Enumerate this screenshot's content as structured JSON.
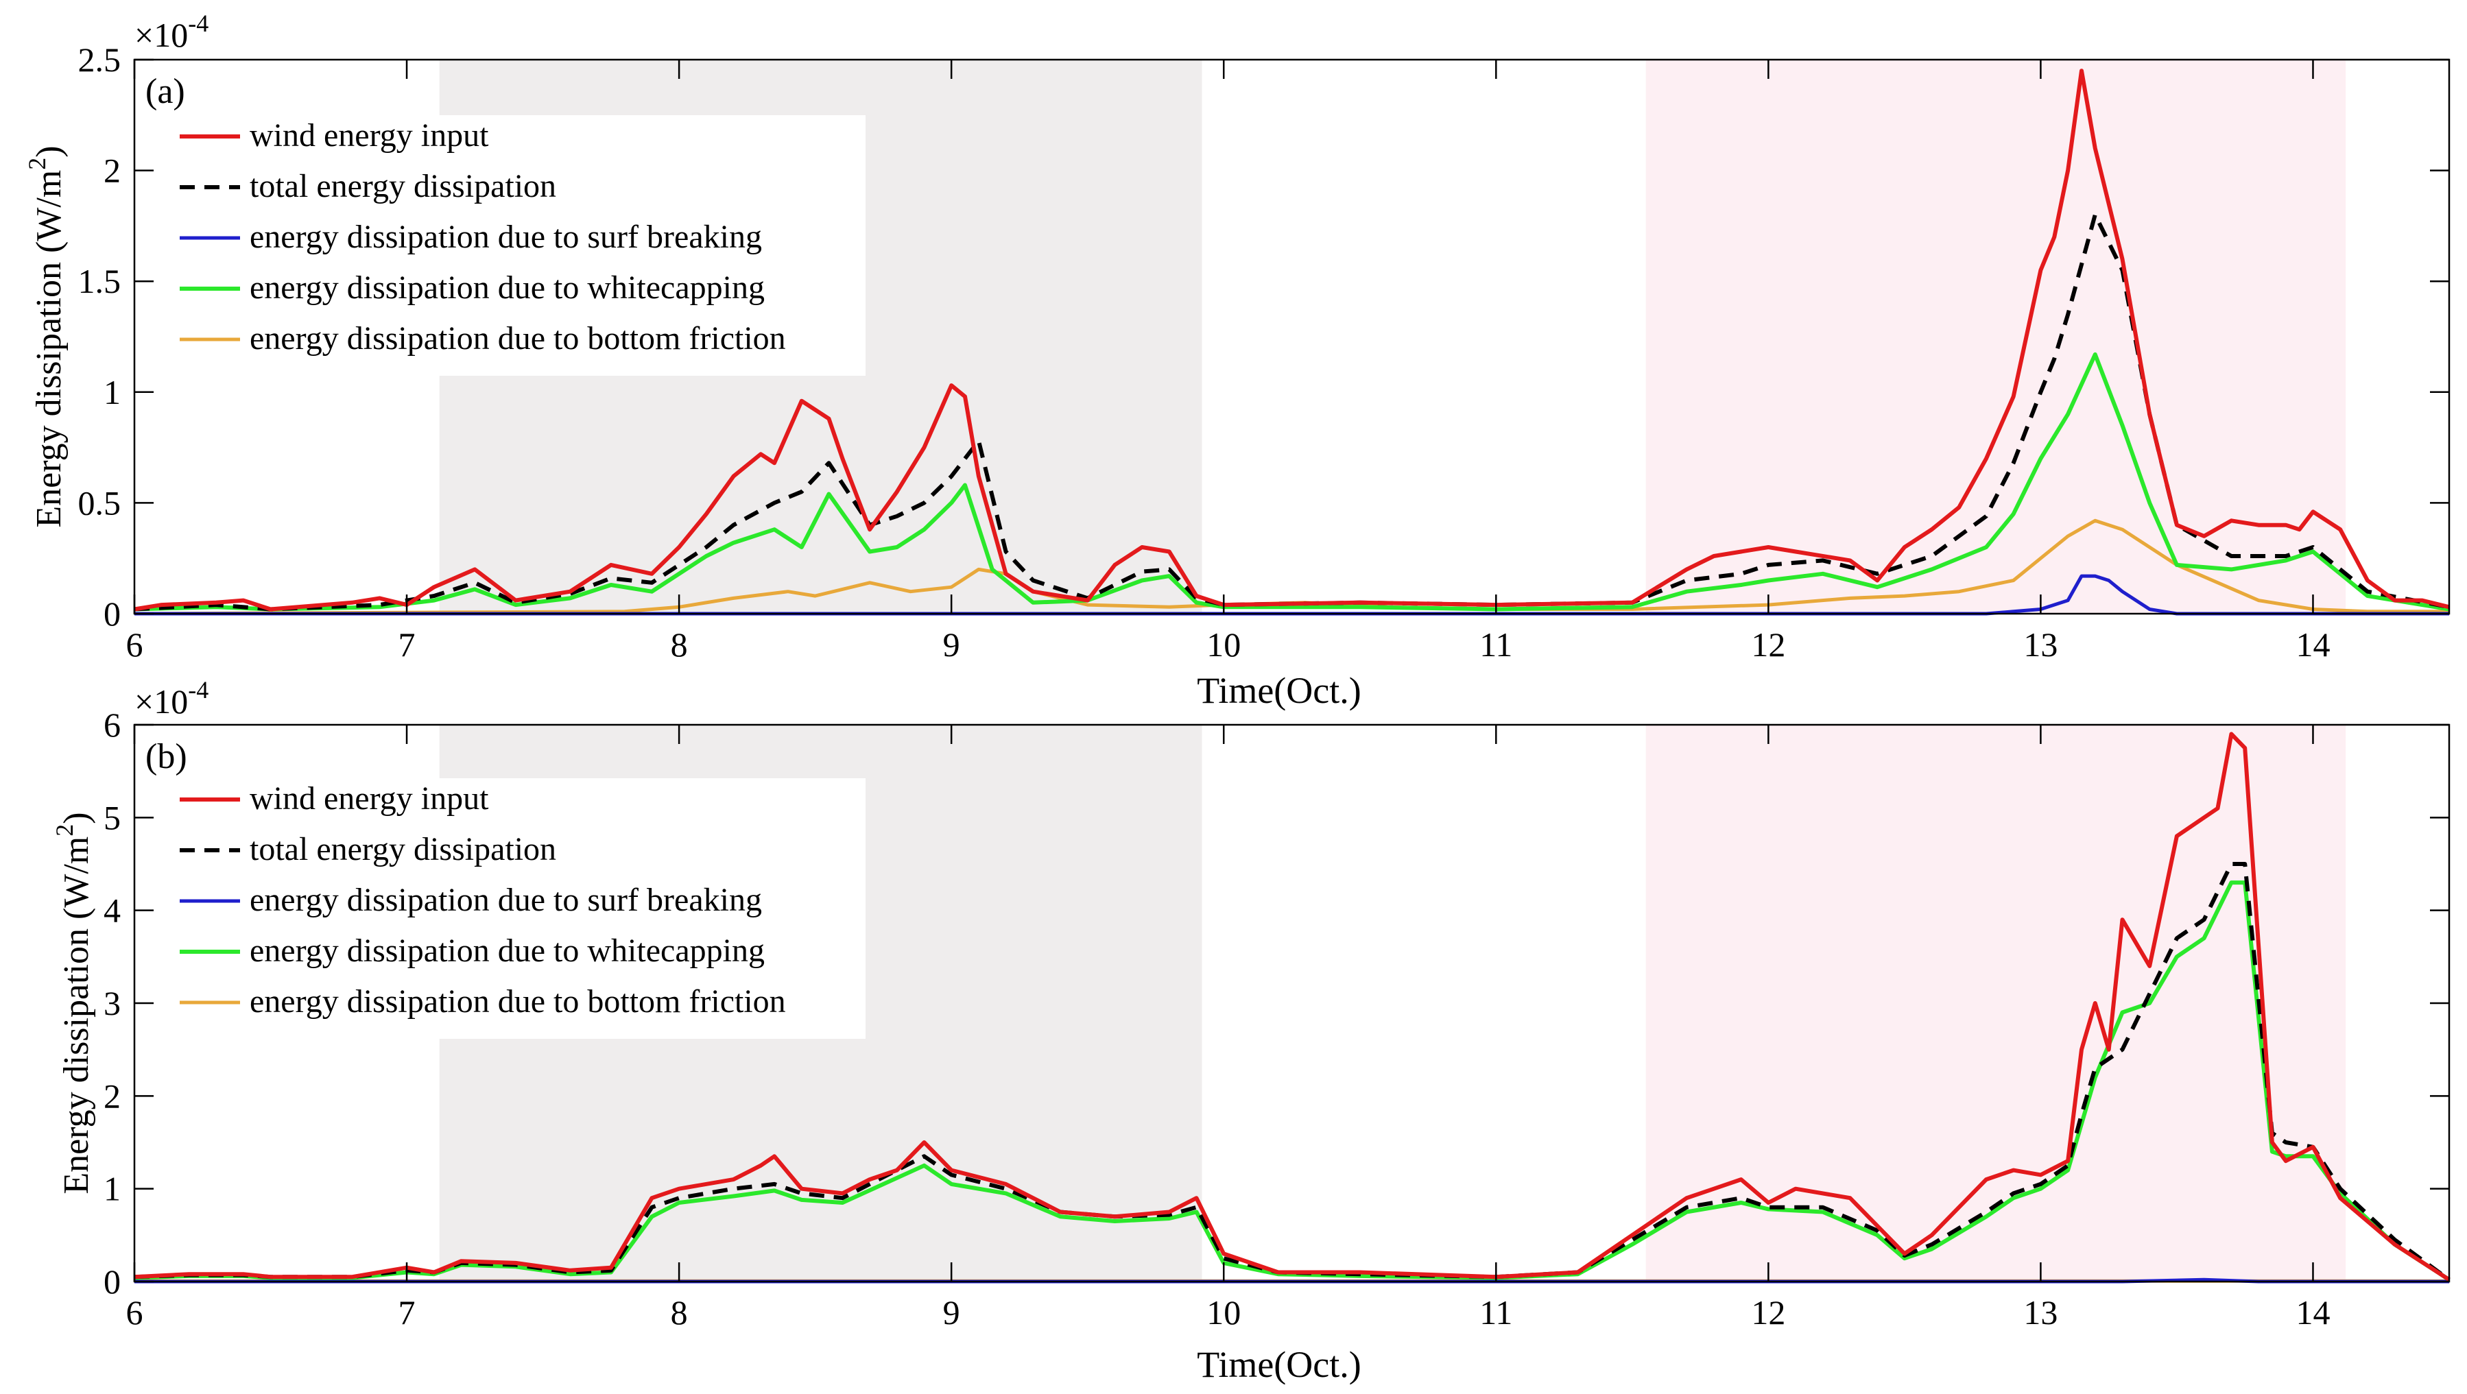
{
  "figure": {
    "x_label": "Time(Oct.)",
    "y_label": "Energy dissipation (W/m",
    "y_label_sup": "2",
    "y_label_tail": ")",
    "exp_base": "×10",
    "exp_power": "-4"
  },
  "colors": {
    "wind": "#e31a1c",
    "total": "#000000",
    "surf": "#1f1fcc",
    "whitecap": "#2be82b",
    "bottom": "#e8a83a",
    "shade_gray": "#efeded",
    "shade_pink": "#fdeff3"
  },
  "chart_data": [
    {
      "type": "line",
      "panel": "(a)",
      "xlim": [
        6,
        14.5
      ],
      "ylim": [
        0,
        2.5
      ],
      "xticks": [
        "6",
        "7",
        "8",
        "9",
        "10",
        "11",
        "12",
        "13",
        "14"
      ],
      "xtick_values": [
        6,
        7,
        8,
        9,
        10,
        11,
        12,
        13,
        14
      ],
      "yticks": [
        "0",
        "0.5",
        "1",
        "1.5",
        "2",
        "2.5"
      ],
      "ytick_values": [
        0,
        0.5,
        1,
        1.5,
        2,
        2.5
      ],
      "shaded_regions": [
        {
          "x": [
            7.12,
            9.92
          ],
          "color": "gray"
        },
        {
          "x": [
            11.55,
            14.12
          ],
          "color": "pink"
        }
      ],
      "legend": [
        "wind energy input",
        "total energy dissipation",
        "energy dissipation due to surf breaking",
        "energy dissipation due to whitecapping",
        "energy dissipation due to bottom friction"
      ],
      "series": [
        {
          "name": "wind energy input",
          "key": "wind",
          "x": [
            6,
            6.1,
            6.3,
            6.4,
            6.5,
            6.8,
            6.9,
            7.0,
            7.1,
            7.25,
            7.4,
            7.6,
            7.75,
            7.9,
            8.0,
            8.1,
            8.2,
            8.3,
            8.35,
            8.45,
            8.55,
            8.6,
            8.7,
            8.8,
            8.9,
            9.0,
            9.05,
            9.1,
            9.2,
            9.3,
            9.5,
            9.6,
            9.7,
            9.8,
            9.9,
            10.0,
            10.5,
            11.0,
            11.5,
            11.7,
            11.8,
            11.9,
            12.0,
            12.1,
            12.3,
            12.4,
            12.5,
            12.6,
            12.7,
            12.8,
            12.9,
            13.0,
            13.05,
            13.1,
            13.15,
            13.2,
            13.3,
            13.4,
            13.5,
            13.6,
            13.7,
            13.8,
            13.9,
            13.95,
            14.0,
            14.1,
            14.2,
            14.3,
            14.4,
            14.5
          ],
          "values": [
            0.02,
            0.04,
            0.05,
            0.06,
            0.02,
            0.05,
            0.07,
            0.04,
            0.12,
            0.2,
            0.06,
            0.1,
            0.22,
            0.18,
            0.3,
            0.45,
            0.62,
            0.72,
            0.68,
            0.96,
            0.88,
            0.7,
            0.38,
            0.55,
            0.75,
            1.03,
            0.98,
            0.62,
            0.18,
            0.1,
            0.06,
            0.22,
            0.3,
            0.28,
            0.08,
            0.04,
            0.05,
            0.04,
            0.05,
            0.2,
            0.26,
            0.28,
            0.3,
            0.28,
            0.24,
            0.15,
            0.3,
            0.38,
            0.48,
            0.7,
            0.98,
            1.55,
            1.7,
            2.0,
            2.45,
            2.1,
            1.6,
            0.9,
            0.4,
            0.35,
            0.42,
            0.4,
            0.4,
            0.38,
            0.46,
            0.38,
            0.15,
            0.06,
            0.06,
            0.03
          ]
        },
        {
          "name": "total energy dissipation",
          "key": "total",
          "x": [
            6,
            6.3,
            6.5,
            6.9,
            7.1,
            7.25,
            7.4,
            7.6,
            7.75,
            7.9,
            8.0,
            8.1,
            8.2,
            8.35,
            8.45,
            8.55,
            8.7,
            8.8,
            8.9,
            9.0,
            9.1,
            9.2,
            9.3,
            9.5,
            9.7,
            9.8,
            9.9,
            10.0,
            10.5,
            11.0,
            11.5,
            11.7,
            11.9,
            12.0,
            12.2,
            12.4,
            12.6,
            12.8,
            12.9,
            13.0,
            13.05,
            13.1,
            13.2,
            13.3,
            13.4,
            13.5,
            13.7,
            13.9,
            14.0,
            14.2,
            14.5
          ],
          "values": [
            0.02,
            0.04,
            0.02,
            0.04,
            0.08,
            0.14,
            0.05,
            0.09,
            0.16,
            0.14,
            0.22,
            0.3,
            0.4,
            0.5,
            0.55,
            0.68,
            0.4,
            0.44,
            0.5,
            0.62,
            0.78,
            0.28,
            0.15,
            0.07,
            0.19,
            0.2,
            0.07,
            0.04,
            0.05,
            0.04,
            0.05,
            0.15,
            0.18,
            0.22,
            0.24,
            0.18,
            0.26,
            0.44,
            0.68,
            1.0,
            1.15,
            1.35,
            1.8,
            1.55,
            0.9,
            0.4,
            0.26,
            0.26,
            0.3,
            0.1,
            0.03
          ]
        },
        {
          "name": "energy dissipation due to surf breaking",
          "key": "surf",
          "x": [
            6,
            12.8,
            13.0,
            13.1,
            13.15,
            13.2,
            13.25,
            13.3,
            13.4,
            13.5,
            14.5
          ],
          "values": [
            0.0,
            0.0,
            0.02,
            0.06,
            0.17,
            0.17,
            0.15,
            0.1,
            0.02,
            0.0,
            0.0
          ]
        },
        {
          "name": "energy dissipation due to whitecapping",
          "key": "whitecap",
          "x": [
            6,
            6.3,
            6.5,
            6.9,
            7.1,
            7.25,
            7.4,
            7.6,
            7.75,
            7.9,
            8.0,
            8.1,
            8.2,
            8.35,
            8.45,
            8.55,
            8.7,
            8.8,
            8.9,
            9.0,
            9.05,
            9.15,
            9.3,
            9.5,
            9.7,
            9.8,
            9.9,
            10.0,
            10.5,
            11.0,
            11.5,
            11.7,
            11.9,
            12.0,
            12.2,
            12.4,
            12.6,
            12.8,
            12.9,
            13.0,
            13.1,
            13.2,
            13.3,
            13.4,
            13.5,
            13.7,
            13.9,
            14.0,
            14.2,
            14.5
          ],
          "values": [
            0.02,
            0.03,
            0.02,
            0.03,
            0.06,
            0.11,
            0.04,
            0.07,
            0.13,
            0.1,
            0.18,
            0.26,
            0.32,
            0.38,
            0.3,
            0.54,
            0.28,
            0.3,
            0.38,
            0.5,
            0.58,
            0.2,
            0.05,
            0.06,
            0.15,
            0.17,
            0.05,
            0.03,
            0.03,
            0.02,
            0.03,
            0.1,
            0.13,
            0.15,
            0.18,
            0.12,
            0.2,
            0.3,
            0.45,
            0.7,
            0.9,
            1.17,
            0.85,
            0.5,
            0.22,
            0.2,
            0.24,
            0.28,
            0.08,
            0.02
          ]
        },
        {
          "name": "energy dissipation due to bottom friction",
          "key": "bottom",
          "x": [
            6,
            7.8,
            8.0,
            8.2,
            8.4,
            8.5,
            8.7,
            8.85,
            9.0,
            9.1,
            9.2,
            9.3,
            9.5,
            9.8,
            10.0,
            10.3,
            10.6,
            11.0,
            11.5,
            12.0,
            12.3,
            12.5,
            12.7,
            12.9,
            13.0,
            13.1,
            13.2,
            13.3,
            13.5,
            13.8,
            14.0,
            14.2,
            14.5
          ],
          "values": [
            0.0,
            0.01,
            0.03,
            0.07,
            0.1,
            0.08,
            0.14,
            0.1,
            0.12,
            0.2,
            0.18,
            0.1,
            0.04,
            0.03,
            0.04,
            0.05,
            0.03,
            0.02,
            0.02,
            0.04,
            0.07,
            0.08,
            0.1,
            0.15,
            0.25,
            0.35,
            0.42,
            0.38,
            0.22,
            0.06,
            0.02,
            0.01,
            0.01
          ]
        }
      ]
    },
    {
      "type": "line",
      "panel": "(b)",
      "xlim": [
        6,
        14.5
      ],
      "ylim": [
        0,
        6
      ],
      "xticks": [
        "6",
        "7",
        "8",
        "9",
        "10",
        "11",
        "12",
        "13",
        "14"
      ],
      "xtick_values": [
        6,
        7,
        8,
        9,
        10,
        11,
        12,
        13,
        14
      ],
      "yticks": [
        "0",
        "1",
        "2",
        "3",
        "4",
        "5",
        "6"
      ],
      "ytick_values": [
        0,
        1,
        2,
        3,
        4,
        5,
        6
      ],
      "shaded_regions": [
        {
          "x": [
            7.12,
            9.92
          ],
          "color": "gray"
        },
        {
          "x": [
            11.55,
            14.12
          ],
          "color": "pink"
        }
      ],
      "legend": [
        "wind energy input",
        "total energy dissipation",
        "energy dissipation due to surf breaking",
        "energy dissipation due to whitecapping",
        "energy dissipation due to bottom friction"
      ],
      "series": [
        {
          "name": "wind energy input",
          "key": "wind",
          "x": [
            6,
            6.2,
            6.4,
            6.5,
            6.8,
            7.0,
            7.1,
            7.2,
            7.4,
            7.6,
            7.75,
            7.9,
            8.0,
            8.2,
            8.3,
            8.35,
            8.45,
            8.6,
            8.7,
            8.8,
            8.9,
            9.0,
            9.2,
            9.4,
            9.6,
            9.8,
            9.9,
            10.0,
            10.2,
            10.5,
            11.0,
            11.3,
            11.5,
            11.7,
            11.8,
            11.9,
            12.0,
            12.1,
            12.3,
            12.4,
            12.5,
            12.6,
            12.7,
            12.8,
            12.9,
            13.0,
            13.1,
            13.15,
            13.2,
            13.25,
            13.3,
            13.4,
            13.5,
            13.6,
            13.65,
            13.7,
            13.75,
            13.85,
            13.9,
            14.0,
            14.1,
            14.3,
            14.5
          ],
          "values": [
            0.05,
            0.08,
            0.08,
            0.05,
            0.05,
            0.15,
            0.1,
            0.22,
            0.2,
            0.12,
            0.15,
            0.9,
            1.0,
            1.1,
            1.25,
            1.35,
            1.0,
            0.95,
            1.1,
            1.2,
            1.5,
            1.2,
            1.05,
            0.75,
            0.7,
            0.75,
            0.9,
            0.3,
            0.1,
            0.1,
            0.05,
            0.1,
            0.5,
            0.9,
            1.0,
            1.1,
            0.85,
            1.0,
            0.9,
            0.6,
            0.3,
            0.5,
            0.8,
            1.1,
            1.2,
            1.15,
            1.3,
            2.5,
            3.0,
            2.5,
            3.9,
            3.4,
            4.8,
            5.0,
            5.1,
            5.9,
            5.75,
            1.5,
            1.3,
            1.45,
            0.9,
            0.4,
            0.02
          ]
        },
        {
          "name": "total energy dissipation",
          "key": "total",
          "x": [
            6,
            6.2,
            6.4,
            6.5,
            6.8,
            7.0,
            7.1,
            7.2,
            7.4,
            7.6,
            7.75,
            7.9,
            8.0,
            8.2,
            8.35,
            8.45,
            8.6,
            8.9,
            9.0,
            9.2,
            9.4,
            9.6,
            9.8,
            9.9,
            10.0,
            10.2,
            10.5,
            11.0,
            11.3,
            11.5,
            11.7,
            11.9,
            12.0,
            12.2,
            12.4,
            12.5,
            12.6,
            12.8,
            12.9,
            13.0,
            13.1,
            13.15,
            13.2,
            13.3,
            13.4,
            13.5,
            13.6,
            13.7,
            13.75,
            13.85,
            13.9,
            14.0,
            14.1,
            14.3,
            14.5
          ],
          "values": [
            0.05,
            0.07,
            0.07,
            0.05,
            0.05,
            0.12,
            0.1,
            0.2,
            0.18,
            0.1,
            0.12,
            0.8,
            0.9,
            1.0,
            1.05,
            0.95,
            0.9,
            1.35,
            1.15,
            1.0,
            0.75,
            0.7,
            0.72,
            0.8,
            0.25,
            0.1,
            0.08,
            0.05,
            0.1,
            0.45,
            0.8,
            0.9,
            0.8,
            0.8,
            0.55,
            0.28,
            0.4,
            0.75,
            0.95,
            1.05,
            1.25,
            1.8,
            2.3,
            2.5,
            3.1,
            3.7,
            3.9,
            4.5,
            4.5,
            1.6,
            1.5,
            1.45,
            1.0,
            0.45,
            0.02
          ]
        },
        {
          "name": "energy dissipation due to surf breaking",
          "key": "surf",
          "x": [
            6,
            13.3,
            13.6,
            13.8,
            14.5
          ],
          "values": [
            0.0,
            0.0,
            0.02,
            0.0,
            0.0
          ]
        },
        {
          "name": "energy dissipation due to whitecapping",
          "key": "whitecap",
          "x": [
            6,
            6.2,
            6.4,
            6.5,
            6.8,
            7.0,
            7.1,
            7.2,
            7.4,
            7.6,
            7.75,
            7.9,
            8.0,
            8.2,
            8.35,
            8.45,
            8.6,
            8.9,
            9.0,
            9.2,
            9.4,
            9.6,
            9.8,
            9.9,
            10.0,
            10.2,
            10.5,
            11.0,
            11.3,
            11.5,
            11.7,
            11.9,
            12.0,
            12.2,
            12.4,
            12.5,
            12.6,
            12.8,
            12.9,
            13.0,
            13.1,
            13.15,
            13.2,
            13.3,
            13.4,
            13.5,
            13.6,
            13.7,
            13.75,
            13.85,
            13.9,
            14.0,
            14.1,
            14.3,
            14.5
          ],
          "values": [
            0.04,
            0.06,
            0.06,
            0.04,
            0.04,
            0.1,
            0.08,
            0.18,
            0.16,
            0.08,
            0.1,
            0.7,
            0.85,
            0.92,
            0.98,
            0.88,
            0.85,
            1.25,
            1.05,
            0.95,
            0.7,
            0.65,
            0.68,
            0.75,
            0.2,
            0.08,
            0.06,
            0.04,
            0.08,
            0.4,
            0.75,
            0.85,
            0.78,
            0.75,
            0.5,
            0.25,
            0.35,
            0.7,
            0.9,
            1.0,
            1.2,
            1.7,
            2.2,
            2.9,
            3.0,
            3.5,
            3.7,
            4.3,
            4.3,
            1.4,
            1.35,
            1.35,
            0.95,
            0.4,
            0.02
          ]
        },
        {
          "name": "energy dissipation due to bottom friction",
          "key": "bottom",
          "x": [
            6,
            14.5
          ],
          "values": [
            0.005,
            0.005
          ]
        }
      ]
    }
  ]
}
